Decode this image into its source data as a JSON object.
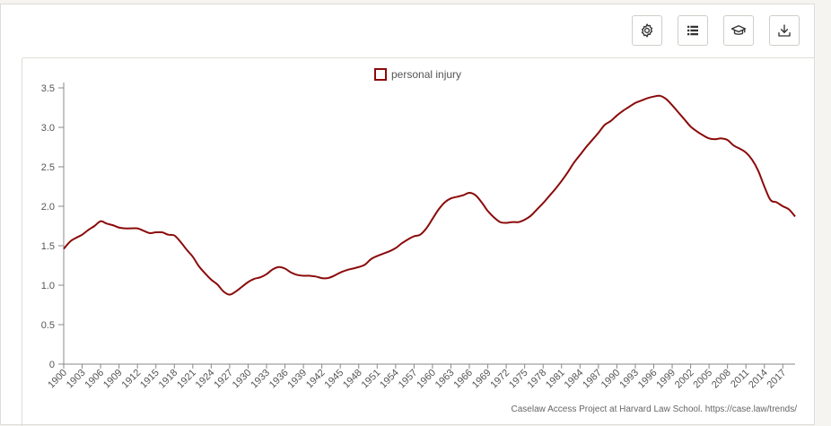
{
  "toolbar": {
    "buttons": [
      {
        "name": "settings-button",
        "icon": "gear-icon"
      },
      {
        "name": "table-view-button",
        "icon": "list-icon"
      },
      {
        "name": "education-button",
        "icon": "graduation-cap-icon"
      },
      {
        "name": "download-button",
        "icon": "download-icon"
      }
    ]
  },
  "footer": {
    "credit": "Caselaw Access Project at Harvard Law School. https://case.law/trends/"
  },
  "colors": {
    "series": "#8b0a0a",
    "axis": "#888888",
    "tick_text": "#555555"
  },
  "chart_data": {
    "type": "line",
    "legend": {
      "entries": [
        "personal injury"
      ],
      "placement": "top-center"
    },
    "xlim": [
      1900,
      2019
    ],
    "ylim": [
      0,
      3.5
    ],
    "yticks": [
      0,
      0.5,
      1.0,
      1.5,
      2.0,
      2.5,
      3.0,
      3.5
    ],
    "ytick_labels": [
      "0",
      "0.5",
      "1.0",
      "1.5",
      "2.0",
      "2.5",
      "3.0",
      "3.5"
    ],
    "xtick_labels": [
      "1900",
      "1903",
      "1906",
      "1909",
      "1912",
      "1915",
      "1918",
      "1921",
      "1924",
      "1927",
      "1930",
      "1933",
      "1936",
      "1939",
      "1942",
      "1945",
      "1948",
      "1951",
      "1954",
      "1957",
      "1960",
      "1963",
      "1966",
      "1969",
      "1972",
      "1975",
      "1978",
      "1981",
      "1984",
      "1987",
      "1990",
      "1993",
      "1996",
      "1999",
      "2002",
      "2005",
      "2008",
      "2011",
      "2014",
      "2017"
    ],
    "grid": false,
    "series": [
      {
        "name": "personal injury",
        "x": [
          1900,
          1901,
          1902,
          1903,
          1904,
          1905,
          1906,
          1907,
          1908,
          1909,
          1910,
          1911,
          1912,
          1913,
          1914,
          1915,
          1916,
          1917,
          1918,
          1919,
          1920,
          1921,
          1922,
          1923,
          1924,
          1925,
          1926,
          1927,
          1928,
          1929,
          1930,
          1931,
          1932,
          1933,
          1934,
          1935,
          1936,
          1937,
          1938,
          1939,
          1940,
          1941,
          1942,
          1943,
          1944,
          1945,
          1946,
          1947,
          1948,
          1949,
          1950,
          1951,
          1952,
          1953,
          1954,
          1955,
          1956,
          1957,
          1958,
          1959,
          1960,
          1961,
          1962,
          1963,
          1964,
          1965,
          1966,
          1967,
          1968,
          1969,
          1970,
          1971,
          1972,
          1973,
          1974,
          1975,
          1976,
          1977,
          1978,
          1979,
          1980,
          1981,
          1982,
          1983,
          1984,
          1985,
          1986,
          1987,
          1988,
          1989,
          1990,
          1991,
          1992,
          1993,
          1994,
          1995,
          1996,
          1997,
          1998,
          1999,
          2000,
          2001,
          2002,
          2003,
          2004,
          2005,
          2006,
          2007,
          2008,
          2009,
          2010,
          2011,
          2012,
          2013,
          2014,
          2015,
          2016,
          2017,
          2018,
          2019
        ],
        "y": [
          1.46,
          1.55,
          1.6,
          1.64,
          1.7,
          1.75,
          1.81,
          1.78,
          1.76,
          1.73,
          1.72,
          1.72,
          1.72,
          1.69,
          1.66,
          1.67,
          1.67,
          1.64,
          1.63,
          1.55,
          1.45,
          1.36,
          1.24,
          1.15,
          1.07,
          1.01,
          0.92,
          0.88,
          0.92,
          0.98,
          1.04,
          1.08,
          1.1,
          1.14,
          1.2,
          1.23,
          1.21,
          1.16,
          1.13,
          1.12,
          1.12,
          1.11,
          1.09,
          1.09,
          1.12,
          1.16,
          1.19,
          1.21,
          1.23,
          1.26,
          1.33,
          1.37,
          1.4,
          1.43,
          1.47,
          1.53,
          1.58,
          1.62,
          1.64,
          1.72,
          1.84,
          1.96,
          2.05,
          2.1,
          2.12,
          2.14,
          2.17,
          2.14,
          2.05,
          1.94,
          1.86,
          1.8,
          1.79,
          1.8,
          1.8,
          1.83,
          1.88,
          1.96,
          2.04,
          2.13,
          2.22,
          2.32,
          2.43,
          2.55,
          2.65,
          2.75,
          2.84,
          2.93,
          3.03,
          3.08,
          3.15,
          3.21,
          3.26,
          3.31,
          3.34,
          3.37,
          3.39,
          3.4,
          3.36,
          3.28,
          3.19,
          3.1,
          3.01,
          2.95,
          2.9,
          2.86,
          2.85,
          2.86,
          2.84,
          2.77,
          2.73,
          2.68,
          2.59,
          2.45,
          2.25,
          2.08,
          2.05,
          2.0,
          1.96,
          1.87
        ]
      }
    ]
  }
}
